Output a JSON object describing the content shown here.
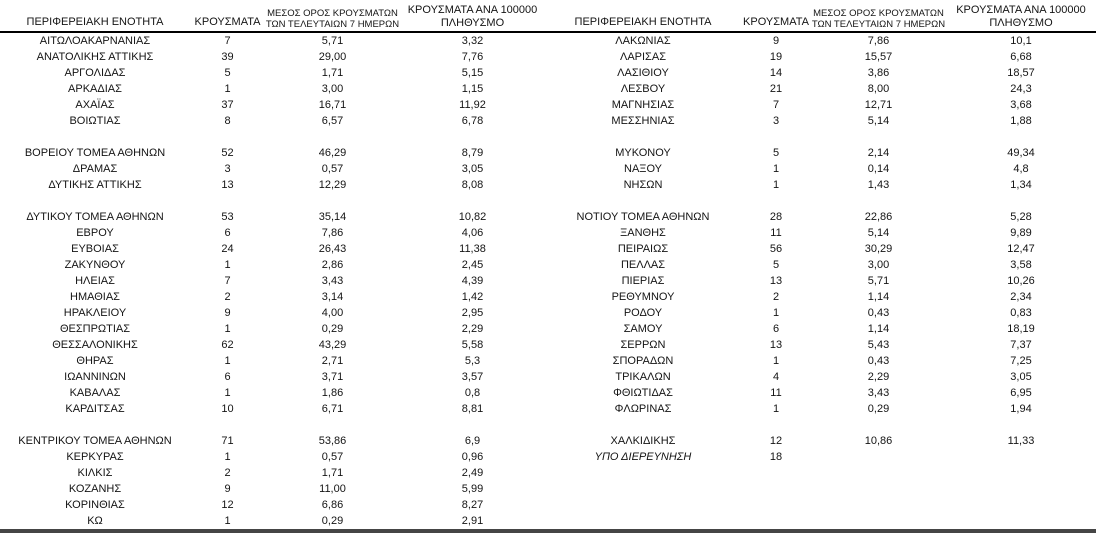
{
  "header": {
    "region": "ΠΕΡΙΦΕΡΕΙΑΚΗ ΕΝΟΤΗΤΑ",
    "cases": "ΚΡΟΥΣΜΑΤΑ",
    "avg7_l1": "ΜΕΣΟΣ ΟΡΟΣ ΚΡΟΥΣΜΑΤΩΝ",
    "avg7_l2": "ΤΩΝ ΤΕΛΕΥΤΑΙΩΝ 7 ΗΜΕΡΩΝ",
    "per100k_l1": "ΚΡΟΥΣΜΑΤΑ ΑΝΑ 100000",
    "per100k_l2": "ΠΛΗΘΥΣΜΟ"
  },
  "rows": [
    {
      "left": {
        "region": "ΑΙΤΩΛΟΑΚΑΡΝΑΝΙΑΣ",
        "cases": "7",
        "avg7": "5,71",
        "per100k": "3,32"
      },
      "right": {
        "region": "ΛΑΚΩΝΙΑΣ",
        "cases": "9",
        "avg7": "7,86",
        "per100k": "10,1"
      }
    },
    {
      "left": {
        "region": "ΑΝΑΤΟΛΙΚΗΣ ΑΤΤΙΚΗΣ",
        "cases": "39",
        "avg7": "29,00",
        "per100k": "7,76"
      },
      "right": {
        "region": "ΛΑΡΙΣΑΣ",
        "cases": "19",
        "avg7": "15,57",
        "per100k": "6,68"
      }
    },
    {
      "left": {
        "region": "ΑΡΓΟΛΙΔΑΣ",
        "cases": "5",
        "avg7": "1,71",
        "per100k": "5,15"
      },
      "right": {
        "region": "ΛΑΣΙΘΙΟΥ",
        "cases": "14",
        "avg7": "3,86",
        "per100k": "18,57"
      }
    },
    {
      "left": {
        "region": "ΑΡΚΑΔΙΑΣ",
        "cases": "1",
        "avg7": "3,00",
        "per100k": "1,15"
      },
      "right": {
        "region": "ΛΕΣΒΟΥ",
        "cases": "21",
        "avg7": "8,00",
        "per100k": "24,3"
      }
    },
    {
      "left": {
        "region": "ΑΧΑΪΑΣ",
        "cases": "37",
        "avg7": "16,71",
        "per100k": "11,92"
      },
      "right": {
        "region": "ΜΑΓΝΗΣΙΑΣ",
        "cases": "7",
        "avg7": "12,71",
        "per100k": "3,68"
      }
    },
    {
      "left": {
        "region": "ΒΟΙΩΤΙΑΣ",
        "cases": "8",
        "avg7": "6,57",
        "per100k": "6,78"
      },
      "right": {
        "region": "ΜΕΣΣΗΝΙΑΣ",
        "cases": "3",
        "avg7": "5,14",
        "per100k": "1,88"
      }
    },
    {
      "left": {},
      "right": {}
    },
    {
      "left": {
        "region": "ΒΟΡΕΙΟΥ ΤΟΜΕΑ ΑΘΗΝΩΝ",
        "cases": "52",
        "avg7": "46,29",
        "per100k": "8,79"
      },
      "right": {
        "region": "ΜΥΚΟΝΟΥ",
        "cases": "5",
        "avg7": "2,14",
        "per100k": "49,34"
      }
    },
    {
      "left": {
        "region": "ΔΡΑΜΑΣ",
        "cases": "3",
        "avg7": "0,57",
        "per100k": "3,05"
      },
      "right": {
        "region": "ΝΑΞΟΥ",
        "cases": "1",
        "avg7": "0,14",
        "per100k": "4,8"
      }
    },
    {
      "left": {
        "region": "ΔΥΤΙΚΗΣ ΑΤΤΙΚΗΣ",
        "cases": "13",
        "avg7": "12,29",
        "per100k": "8,08"
      },
      "right": {
        "region": "ΝΗΣΩΝ",
        "cases": "1",
        "avg7": "1,43",
        "per100k": "1,34"
      }
    },
    {
      "left": {},
      "right": {}
    },
    {
      "left": {
        "region": "ΔΥΤΙΚΟΥ ΤΟΜΕΑ ΑΘΗΝΩΝ",
        "cases": "53",
        "avg7": "35,14",
        "per100k": "10,82"
      },
      "right": {
        "region": "ΝΟΤΙΟΥ ΤΟΜΕΑ ΑΘΗΝΩΝ",
        "cases": "28",
        "avg7": "22,86",
        "per100k": "5,28"
      }
    },
    {
      "left": {
        "region": "ΕΒΡΟΥ",
        "cases": "6",
        "avg7": "7,86",
        "per100k": "4,06"
      },
      "right": {
        "region": "ΞΑΝΘΗΣ",
        "cases": "11",
        "avg7": "5,14",
        "per100k": "9,89"
      }
    },
    {
      "left": {
        "region": "ΕΥΒΟΙΑΣ",
        "cases": "24",
        "avg7": "26,43",
        "per100k": "11,38"
      },
      "right": {
        "region": "ΠΕΙΡΑΙΩΣ",
        "cases": "56",
        "avg7": "30,29",
        "per100k": "12,47"
      }
    },
    {
      "left": {
        "region": "ΖΑΚΥΝΘΟΥ",
        "cases": "1",
        "avg7": "2,86",
        "per100k": "2,45"
      },
      "right": {
        "region": "ΠΕΛΛΑΣ",
        "cases": "5",
        "avg7": "3,00",
        "per100k": "3,58"
      }
    },
    {
      "left": {
        "region": "ΗΛΕΙΑΣ",
        "cases": "7",
        "avg7": "3,43",
        "per100k": "4,39"
      },
      "right": {
        "region": "ΠΙΕΡΙΑΣ",
        "cases": "13",
        "avg7": "5,71",
        "per100k": "10,26"
      }
    },
    {
      "left": {
        "region": "ΗΜΑΘΙΑΣ",
        "cases": "2",
        "avg7": "3,14",
        "per100k": "1,42"
      },
      "right": {
        "region": "ΡΕΘΥΜΝΟΥ",
        "cases": "2",
        "avg7": "1,14",
        "per100k": "2,34"
      }
    },
    {
      "left": {
        "region": "ΗΡΑΚΛΕΙΟΥ",
        "cases": "9",
        "avg7": "4,00",
        "per100k": "2,95"
      },
      "right": {
        "region": "ΡΟΔΟΥ",
        "cases": "1",
        "avg7": "0,43",
        "per100k": "0,83"
      }
    },
    {
      "left": {
        "region": "ΘΕΣΠΡΩΤΙΑΣ",
        "cases": "1",
        "avg7": "0,29",
        "per100k": "2,29"
      },
      "right": {
        "region": "ΣΑΜΟΥ",
        "cases": "6",
        "avg7": "1,14",
        "per100k": "18,19"
      }
    },
    {
      "left": {
        "region": "ΘΕΣΣΑΛΟΝΙΚΗΣ",
        "cases": "62",
        "avg7": "43,29",
        "per100k": "5,58"
      },
      "right": {
        "region": "ΣΕΡΡΩΝ",
        "cases": "13",
        "avg7": "5,43",
        "per100k": "7,37"
      }
    },
    {
      "left": {
        "region": "ΘΗΡΑΣ",
        "cases": "1",
        "avg7": "2,71",
        "per100k": "5,3"
      },
      "right": {
        "region": "ΣΠΟΡΑΔΩΝ",
        "cases": "1",
        "avg7": "0,43",
        "per100k": "7,25"
      }
    },
    {
      "left": {
        "region": "ΙΩΑΝΝΙΝΩΝ",
        "cases": "6",
        "avg7": "3,71",
        "per100k": "3,57"
      },
      "right": {
        "region": "ΤΡΙΚΑΛΩΝ",
        "cases": "4",
        "avg7": "2,29",
        "per100k": "3,05"
      }
    },
    {
      "left": {
        "region": "ΚΑΒΑΛΑΣ",
        "cases": "1",
        "avg7": "1,86",
        "per100k": "0,8"
      },
      "right": {
        "region": "ΦΘΙΩΤΙΔΑΣ",
        "cases": "11",
        "avg7": "3,43",
        "per100k": "6,95"
      }
    },
    {
      "left": {
        "region": "ΚΑΡΔΙΤΣΑΣ",
        "cases": "10",
        "avg7": "6,71",
        "per100k": "8,81"
      },
      "right": {
        "region": "ΦΛΩΡΙΝΑΣ",
        "cases": "1",
        "avg7": "0,29",
        "per100k": "1,94"
      }
    },
    {
      "left": {},
      "right": {}
    },
    {
      "left": {
        "region": "ΚΕΝΤΡΙΚΟΥ ΤΟΜΕΑ ΑΘΗΝΩΝ",
        "cases": "71",
        "avg7": "53,86",
        "per100k": "6,9"
      },
      "right": {
        "region": "ΧΑΛΚΙΔΙΚΗΣ",
        "cases": "12",
        "avg7": "10,86",
        "per100k": "11,33"
      }
    },
    {
      "left": {
        "region": "ΚΕΡΚΥΡΑΣ",
        "cases": "1",
        "avg7": "0,57",
        "per100k": "0,96"
      },
      "right": {
        "region": "ΥΠΟ ΔΙΕΡΕΥΝΗΣΗ",
        "cases": "18",
        "avg7": "",
        "per100k": "",
        "italic": true
      }
    },
    {
      "left": {
        "region": "ΚΙΛΚΙΣ",
        "cases": "2",
        "avg7": "1,71",
        "per100k": "2,49"
      },
      "right": {}
    },
    {
      "left": {
        "region": "ΚΟΖΑΝΗΣ",
        "cases": "9",
        "avg7": "11,00",
        "per100k": "5,99"
      },
      "right": {}
    },
    {
      "left": {
        "region": "ΚΟΡΙΝΘΙΑΣ",
        "cases": "12",
        "avg7": "6,86",
        "per100k": "8,27"
      },
      "right": {}
    },
    {
      "left": {
        "region": "ΚΩ",
        "cases": "1",
        "avg7": "0,29",
        "per100k": "2,91"
      },
      "right": {}
    }
  ]
}
